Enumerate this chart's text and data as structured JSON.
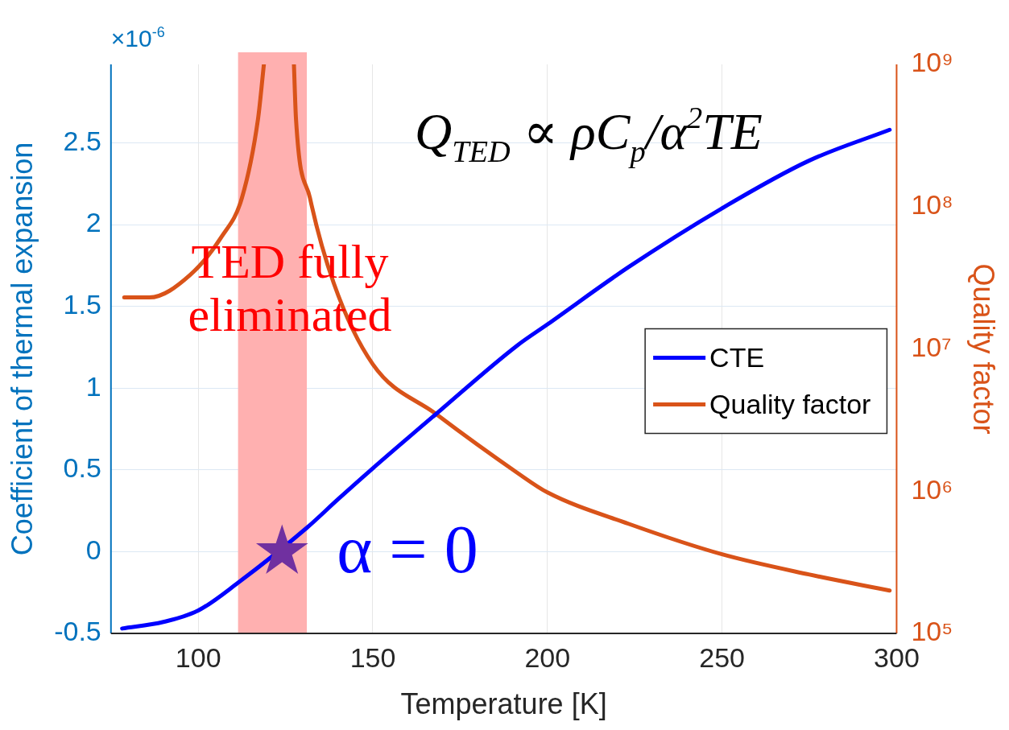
{
  "chart_data": {
    "type": "line",
    "xlabel": "Temperature [K]",
    "ylabel": "Coefficient of thermal expansion",
    "y2label": "Quality factor",
    "xlim": [
      75,
      300
    ],
    "xticks": [
      100,
      150,
      200,
      250,
      300
    ],
    "ylim": [
      -0.5,
      2.98
    ],
    "yticks": [
      -0.5,
      0,
      0.5,
      1,
      1.5,
      2,
      2.5
    ],
    "y2lim": [
      100000,
      1000000000
    ],
    "y2ticks": [
      {
        "value": 100000,
        "label": "10⁵"
      },
      {
        "value": 1000000,
        "label": "10⁶"
      },
      {
        "value": 10000000,
        "label": "10⁷"
      },
      {
        "value": 100000000,
        "label": "10⁸"
      },
      {
        "value": 1000000000,
        "label": "10⁹"
      }
    ],
    "log": "y2",
    "grid": true,
    "legend": "right",
    "line_style": "solid",
    "series": [
      {
        "name": "CTE",
        "color": "#0000ff",
        "marker": "none",
        "x": [
          78.2,
          90,
          100,
          111.4,
          131.1,
          140,
          150,
          168,
          191.3,
          200,
          223.2,
          250,
          274.8,
          298
        ],
        "values": [
          -0.47,
          -0.43,
          -0.36,
          -0.19,
          0.146,
          0.32,
          0.51,
          0.84,
          1.26,
          1.39,
          1.74,
          2.1,
          2.39,
          2.58
        ]
      },
      {
        "name": "Quality factor",
        "color": "#d95319",
        "marker": "none",
        "axis": "y2",
        "x": [
          78.8,
          86,
          97.6,
          106.8,
          112.5,
          117.1,
          118.8,
          123,
          127.4,
          128,
          132,
          138.8,
          150,
          168,
          191.3,
          200,
          223.2,
          250,
          274.8,
          298
        ],
        "values": [
          23000000,
          23000000,
          33000000,
          62000000,
          115000000,
          410000000,
          1000000000,
          null,
          1000000000,
          410000000,
          115000000,
          29000000,
          7800000,
          3500000,
          1350000,
          980000,
          590000,
          360000,
          260000,
          200000
        ]
      },
      {
        "type": "scatter",
        "color": "#7030a0",
        "marker": "star",
        "x": [
          124
        ],
        "values": [
          0
        ]
      }
    ],
    "bands": [
      {
        "axis": "x",
        "from": 111.4,
        "to": 131.1,
        "color": "#ffb0b0"
      }
    ],
    "annotations": [
      "×10$^{-6}$",
      "Q$_{TED}$ ∝ ρC$_{p}$/α$^{2}$TE",
      "TED fully\neliminated",
      {
        "text": "α = 0",
        "x": 124,
        "y": 0
      }
    ]
  }
}
